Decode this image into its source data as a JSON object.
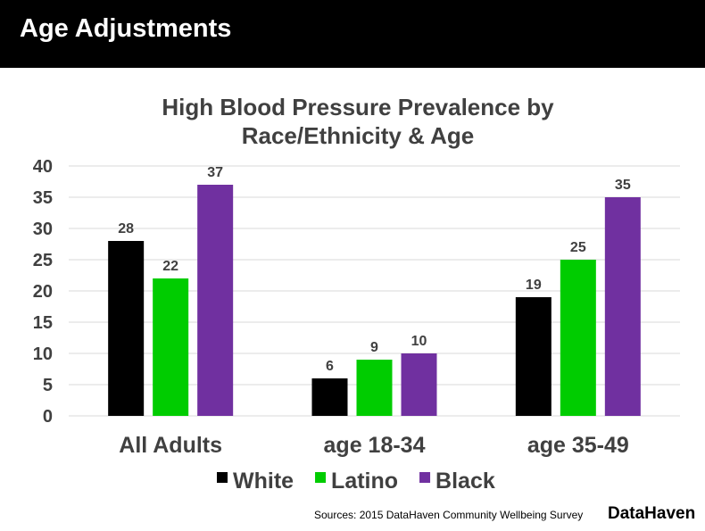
{
  "header": {
    "title": "Age Adjustments"
  },
  "chart_data": {
    "type": "bar",
    "title_line1": "High Blood Pressure Prevalence by",
    "title_line2": "Race/Ethnicity & Age",
    "categories": [
      "All Adults",
      "age 18-34",
      "age 35-49"
    ],
    "series": [
      {
        "name": "White",
        "color": "#000000",
        "values": [
          28,
          6,
          19
        ]
      },
      {
        "name": "Latino",
        "color": "#00cc00",
        "values": [
          22,
          9,
          25
        ]
      },
      {
        "name": "Black",
        "color": "#7030a0",
        "values": [
          37,
          10,
          35
        ]
      }
    ],
    "ylim": [
      0,
      40
    ],
    "yticks": [
      0,
      5,
      10,
      15,
      20,
      25,
      30,
      35,
      40
    ],
    "grid": true,
    "legend": "bottom",
    "data_labels": true
  },
  "footer": {
    "source": "Sources: 2015 DataHaven Community Wellbeing Survey",
    "brand": "DataHaven"
  }
}
